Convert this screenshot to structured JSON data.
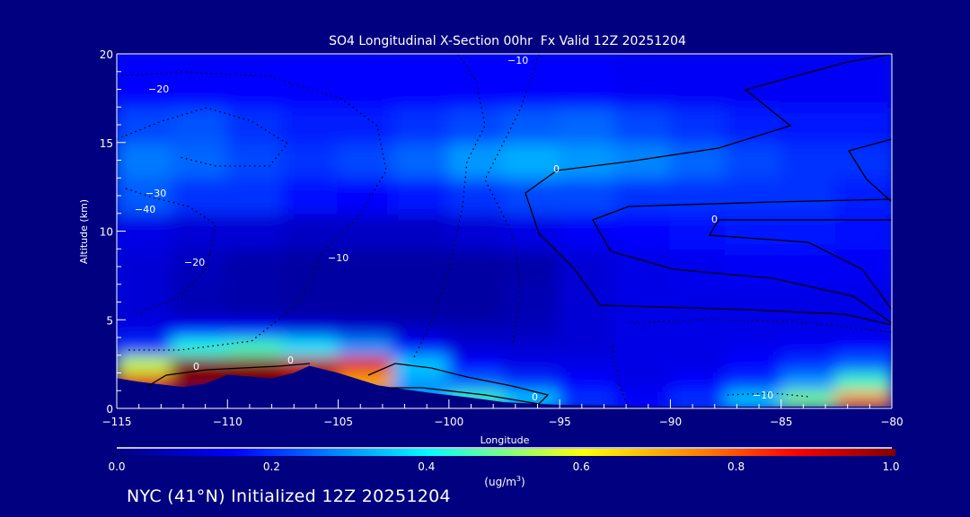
{
  "chart_data": {
    "type": "heatmap",
    "title": "SO4 Longitudinal X-Section 00hr  Fx Valid 12Z 20251204",
    "xlabel": "Longitude",
    "ylabel": "Altitude (km)",
    "xlim": [
      -115,
      -80
    ],
    "ylim": [
      0,
      20
    ],
    "xticks": [
      -115,
      -110,
      -105,
      -100,
      -95,
      -90,
      -85,
      -80
    ],
    "xtick_labels": [
      "−115",
      "−110",
      "−105",
      "−100",
      "−95",
      "−90",
      "−85",
      "−80"
    ],
    "yticks": [
      0,
      5,
      10,
      15,
      20
    ],
    "ytick_labels": [
      "0",
      "5",
      "10",
      "15",
      "20"
    ],
    "lon_edges": [
      -115,
      -112.5,
      -110,
      -107.5,
      -105,
      -102.5,
      -100,
      -97.5,
      -95,
      -92.5,
      -90,
      -87.5,
      -85,
      -82.5,
      -80
    ],
    "alt_edges": [
      0,
      1,
      2,
      3,
      4,
      5,
      7,
      9,
      11,
      13,
      15,
      17,
      20
    ],
    "values": [
      [
        0,
        0,
        0,
        0,
        0,
        0.3,
        0.45,
        0.35,
        0.2,
        0.15,
        0.2,
        0.35,
        0.5,
        0.75
      ],
      [
        0.9,
        1,
        1,
        0.95,
        0.7,
        0.3,
        0.25,
        0.2,
        0.15,
        0.12,
        0.15,
        0.2,
        0.3,
        0.45
      ],
      [
        0.55,
        1,
        1,
        0.95,
        0.9,
        0.35,
        0.15,
        0.12,
        0.12,
        0.12,
        0.12,
        0.15,
        0.2,
        0.25
      ],
      [
        0.2,
        0.42,
        0.45,
        0.38,
        0.3,
        0.15,
        0.1,
        0.1,
        0.1,
        0.12,
        0.12,
        0.13,
        0.14,
        0.15
      ],
      [
        0.12,
        0.15,
        0.15,
        0.12,
        0.1,
        0.08,
        0.07,
        0.07,
        0.1,
        0.12,
        0.12,
        0.12,
        0.12,
        0.12
      ],
      [
        0.1,
        0.06,
        0.05,
        0.04,
        0.04,
        0.04,
        0.04,
        0.06,
        0.1,
        0.12,
        0.12,
        0.12,
        0.12,
        0.12
      ],
      [
        0.1,
        0.07,
        0.05,
        0.04,
        0.04,
        0.04,
        0.04,
        0.05,
        0.1,
        0.12,
        0.13,
        0.14,
        0.14,
        0.14
      ],
      [
        0.12,
        0.1,
        0.1,
        0.08,
        0.08,
        0.08,
        0.1,
        0.12,
        0.14,
        0.15,
        0.16,
        0.17,
        0.17,
        0.16
      ],
      [
        0.24,
        0.2,
        0.2,
        0.16,
        0.15,
        0.17,
        0.2,
        0.22,
        0.22,
        0.2,
        0.2,
        0.2,
        0.2,
        0.18
      ],
      [
        0.27,
        0.25,
        0.22,
        0.2,
        0.22,
        0.25,
        0.3,
        0.32,
        0.3,
        0.28,
        0.25,
        0.22,
        0.2,
        0.2
      ],
      [
        0.22,
        0.23,
        0.2,
        0.18,
        0.18,
        0.2,
        0.22,
        0.24,
        0.25,
        0.22,
        0.2,
        0.18,
        0.17,
        0.17
      ],
      [
        0.15,
        0.15,
        0.15,
        0.15,
        0.15,
        0.15,
        0.15,
        0.15,
        0.15,
        0.14,
        0.14,
        0.14,
        0.14,
        0.14
      ]
    ],
    "terrain": {
      "lon": [
        -115,
        -114,
        -112,
        -111,
        -110,
        -109,
        -108,
        -107,
        -106.3,
        -105,
        -103.2,
        -101,
        -99,
        -97.5,
        -95,
        -90,
        -85,
        -80
      ],
      "alt": [
        1.7,
        1.5,
        1.2,
        1.4,
        1.9,
        1.8,
        1.7,
        2.0,
        2.4,
        2.0,
        1.3,
        0.9,
        0.6,
        0.35,
        0.2,
        0.1,
        0.1,
        0.1
      ]
    },
    "contour_labels": [
      "−20",
      "−30",
      "−40",
      "−20",
      "−10",
      "0",
      "0",
      "−10",
      "0",
      "0",
      "0",
      "−10"
    ],
    "colorbar": {
      "range": [
        0.0,
        1.0
      ],
      "tick_labels": [
        "0.0",
        "0.2",
        "0.4",
        "0.6",
        "0.8",
        "1.0"
      ],
      "units_prefix": "(ug/m",
      "units_sup": "3",
      "units_suffix": ")",
      "stops": [
        [
          0,
          "#000080"
        ],
        [
          0.15,
          "#0000ff"
        ],
        [
          0.4,
          "#00ffff"
        ],
        [
          0.5,
          "#80ff80"
        ],
        [
          0.6,
          "#ffff00"
        ],
        [
          0.75,
          "#ff8000"
        ],
        [
          0.87,
          "#ff0000"
        ],
        [
          1,
          "#800000"
        ]
      ]
    }
  },
  "footer": "NYC (41°N) Initialized 12Z 20251204"
}
